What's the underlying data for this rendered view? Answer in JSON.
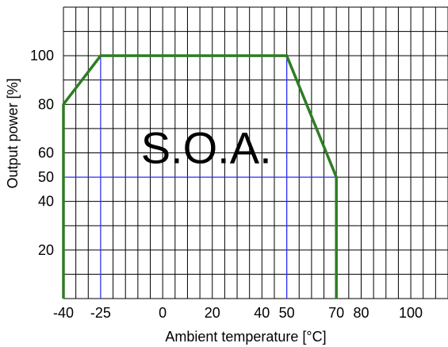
{
  "chart_data": {
    "type": "line",
    "xlabel": "Ambient temperature [°C]",
    "ylabel": "Output power [%]",
    "xlim": [
      -40,
      115
    ],
    "ylim": [
      0,
      120
    ],
    "x_ticks": [
      -40,
      -25,
      0,
      20,
      40,
      50,
      70,
      80,
      100
    ],
    "y_ticks": [
      20,
      40,
      50,
      60,
      80,
      100
    ],
    "grid": true,
    "series": [
      {
        "points": [
          [
            -40,
            0
          ],
          [
            -40,
            80
          ],
          [
            -25,
            100
          ],
          [
            50,
            100
          ],
          [
            70,
            50
          ],
          [
            70,
            0
          ]
        ],
        "color": "#2e7d24"
      }
    ],
    "reference_lines": [
      {
        "type": "vertical",
        "x": -25,
        "from_y": 0,
        "to_y": 100,
        "color": "#2b2bff"
      },
      {
        "type": "vertical",
        "x": 50,
        "from_y": 0,
        "to_y": 100,
        "color": "#2b2bff"
      },
      {
        "type": "horizontal",
        "y": 50,
        "from_x": -40,
        "to_x": 70,
        "color": "#2b2bff"
      }
    ],
    "annotations": [
      {
        "text": "S.O.A.",
        "x": 0,
        "y": 63
      }
    ],
    "colors": {
      "grid": "#000000",
      "curve": "#2e7d24",
      "reference": "#2b2bff"
    }
  }
}
